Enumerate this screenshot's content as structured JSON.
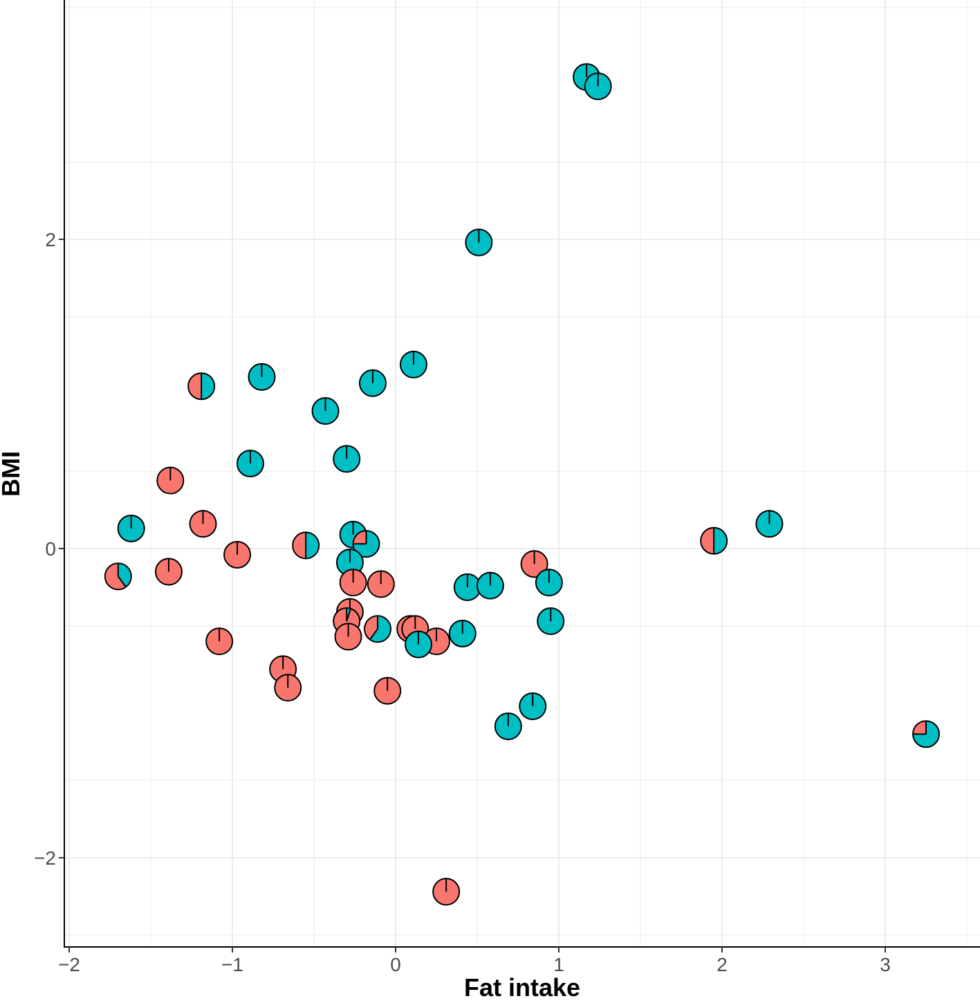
{
  "chart_data": {
    "type": "scatter",
    "subtype": "pie-glyph scatter",
    "xlabel": "Fat intake",
    "ylabel": "BMI",
    "xlim": [
      -2.02,
      3.55
    ],
    "ylim": [
      -2.55,
      3.55
    ],
    "x_ticks": [
      -2,
      -1,
      0,
      1,
      2,
      3
    ],
    "x_tick_labels": [
      "−2",
      "−1",
      "0",
      "1",
      "2",
      "3"
    ],
    "y_ticks": [
      -2,
      0,
      2
    ],
    "y_tick_labels": [
      "−2",
      "0",
      "2"
    ],
    "grid": true,
    "legend": "none",
    "colors": {
      "teal": "#00BFC4",
      "salmon": "#F8766D",
      "grid": "#ebebeb",
      "outline": "#000000"
    },
    "points_note": "teal = fraction of pie shown in teal, remainder shown in salmon",
    "points": [
      {
        "x": 1.17,
        "y": 3.05,
        "teal": 1.0
      },
      {
        "x": 1.24,
        "y": 2.99,
        "teal": 1.0
      },
      {
        "x": 0.51,
        "y": 1.98,
        "teal": 1.0
      },
      {
        "x": 0.11,
        "y": 1.19,
        "teal": 1.0
      },
      {
        "x": -0.14,
        "y": 1.07,
        "teal": 1.0
      },
      {
        "x": -0.82,
        "y": 1.11,
        "teal": 1.0
      },
      {
        "x": -1.19,
        "y": 1.05,
        "teal": 0.5
      },
      {
        "x": -0.43,
        "y": 0.89,
        "teal": 1.0
      },
      {
        "x": -0.3,
        "y": 0.58,
        "teal": 1.0
      },
      {
        "x": -0.89,
        "y": 0.55,
        "teal": 1.0
      },
      {
        "x": -1.38,
        "y": 0.44,
        "teal": 0.0
      },
      {
        "x": -1.18,
        "y": 0.16,
        "teal": 0.0
      },
      {
        "x": -1.62,
        "y": 0.13,
        "teal": 1.0
      },
      {
        "x": -0.97,
        "y": -0.04,
        "teal": 0.0
      },
      {
        "x": -0.55,
        "y": 0.02,
        "teal": 0.5
      },
      {
        "x": -0.26,
        "y": 0.09,
        "teal": 1.0
      },
      {
        "x": -0.18,
        "y": 0.03,
        "teal": 0.75
      },
      {
        "x": -1.39,
        "y": -0.15,
        "teal": 0.0
      },
      {
        "x": -1.7,
        "y": -0.18,
        "teal": 0.4
      },
      {
        "x": -0.28,
        "y": -0.09,
        "teal": 1.0
      },
      {
        "x": -0.26,
        "y": -0.22,
        "teal": 0.0
      },
      {
        "x": -0.09,
        "y": -0.23,
        "teal": 0.0
      },
      {
        "x": 0.85,
        "y": -0.1,
        "teal": 0.0
      },
      {
        "x": 0.44,
        "y": -0.25,
        "teal": 1.0
      },
      {
        "x": 0.58,
        "y": -0.24,
        "teal": 1.0
      },
      {
        "x": 0.94,
        "y": -0.22,
        "teal": 1.0
      },
      {
        "x": -0.28,
        "y": -0.41,
        "teal": 0.0
      },
      {
        "x": -0.3,
        "y": -0.47,
        "teal": 0.05
      },
      {
        "x": -0.29,
        "y": -0.57,
        "teal": 0.0
      },
      {
        "x": -0.11,
        "y": -0.52,
        "teal": 0.6
      },
      {
        "x": 0.09,
        "y": -0.52,
        "teal": 0.25
      },
      {
        "x": 0.12,
        "y": -0.52,
        "teal": 0.0
      },
      {
        "x": 0.25,
        "y": -0.6,
        "teal": 0.0
      },
      {
        "x": 0.14,
        "y": -0.62,
        "teal": 1.0
      },
      {
        "x": 0.41,
        "y": -0.55,
        "teal": 1.0
      },
      {
        "x": 0.95,
        "y": -0.47,
        "teal": 1.0
      },
      {
        "x": -1.08,
        "y": -0.6,
        "teal": 0.0
      },
      {
        "x": -0.69,
        "y": -0.78,
        "teal": 0.0
      },
      {
        "x": -0.66,
        "y": -0.9,
        "teal": 0.0
      },
      {
        "x": -0.05,
        "y": -0.92,
        "teal": 0.0
      },
      {
        "x": 0.84,
        "y": -1.02,
        "teal": 1.0
      },
      {
        "x": 0.69,
        "y": -1.15,
        "teal": 1.0
      },
      {
        "x": 1.95,
        "y": 0.05,
        "teal": 0.5
      },
      {
        "x": 2.29,
        "y": 0.16,
        "teal": 1.0
      },
      {
        "x": 3.25,
        "y": -1.2,
        "teal": 0.75
      },
      {
        "x": 0.31,
        "y": -2.22,
        "teal": 0.0
      }
    ]
  }
}
